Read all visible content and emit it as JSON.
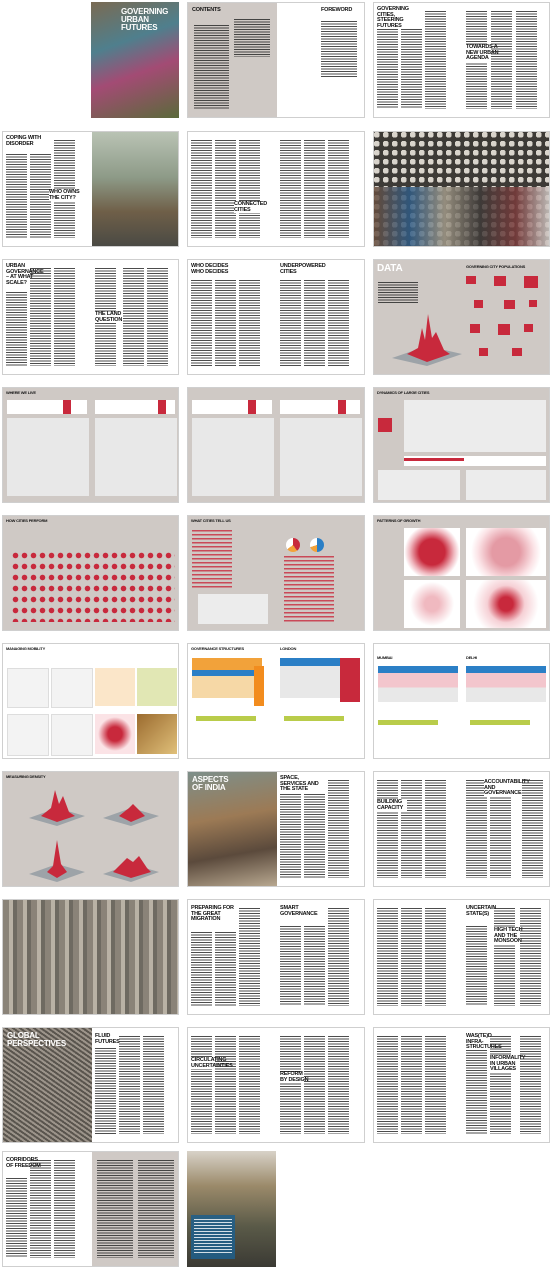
{
  "headings": {
    "cover_title": "Governing Urban Futures",
    "contents": "Contents",
    "foreword": "Foreword",
    "governing_cities": "Governing cities, steering futures",
    "towards_agenda": "Towards a new urban agenda",
    "coping": "Coping with disorder",
    "who_owns": "Who owns the city?",
    "connected": "Connected cities",
    "urban_gov": "Urban governance – at what scale?",
    "land": "The land question",
    "who_decides": "Who decides who decides",
    "underpowered": "Underpowered cities",
    "data": "Data",
    "governing_populations": "Governing city populations",
    "where_we_live": "Where we live",
    "dynamics": "Dynamics of large cities",
    "how_perform": "How cities perform",
    "what_tell": "What cities tell us",
    "patterns": "Patterns of growth",
    "mobility": "Managing mobility",
    "governance_structures": "Governance structures",
    "london": "London",
    "mumbai": "Mumbai",
    "delhi": "Delhi",
    "density": "Measuring density",
    "aspects": "Aspects of India",
    "space": "Space, services and the state",
    "accountability": "Accountability and governance",
    "capacity": "Building capacity",
    "preparing": "Preparing for the great migration",
    "smart": "Smart governance",
    "uncertain": "Uncertain state(s)",
    "high_tech": "High tech and the monsoon",
    "global": "Global perspectives",
    "fluid": "Fluid futures",
    "circulating": "Circulating uncertainties",
    "reform": "Reform by design",
    "wasted": "Was(te)d infra-structures",
    "informality": "Informality in urban villages",
    "corridors": "Corridors of freedom"
  }
}
